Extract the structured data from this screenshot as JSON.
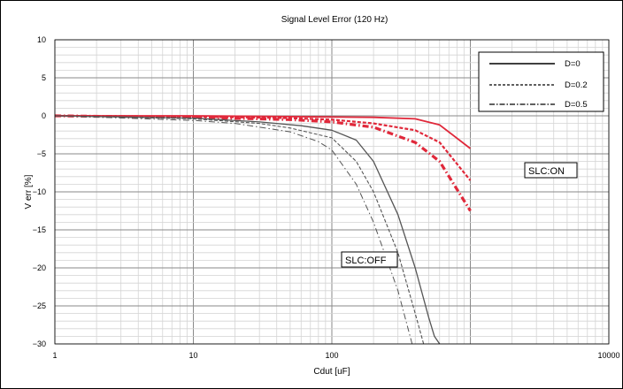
{
  "chart_data": {
    "type": "line",
    "title": "Signal Level Error (120 Hz)",
    "xlabel": "Cdut [uF]",
    "ylabel": "V err [%]",
    "xscale": "log",
    "xlim": [
      1,
      10000
    ],
    "ylim": [
      -30,
      10
    ],
    "xtick_labels": [
      "1",
      "10",
      "100",
      "10000"
    ],
    "ytick_labels": [
      "10",
      "5",
      "0",
      "−5",
      "−10",
      "−15",
      "−20",
      "−25",
      "−30"
    ],
    "yticks": [
      10,
      5,
      0,
      -5,
      -10,
      -15,
      -20,
      -25,
      -30
    ],
    "grid": true,
    "legend": {
      "placement": "top-right",
      "entries": [
        {
          "label": "D=0",
          "style": "solid"
        },
        {
          "label": "D=0.2",
          "style": "dashed"
        },
        {
          "label": "D=0.5",
          "style": "dashdot"
        }
      ]
    },
    "annotations": [
      {
        "id": "slc-on",
        "text": "SLC:ON"
      },
      {
        "id": "slc-off",
        "text": "SLC:OFF"
      }
    ],
    "series": [
      {
        "group": "SLC:ON",
        "style": "solid",
        "color": "#e0283a",
        "x": [
          1,
          10,
          50,
          100,
          200,
          400,
          600,
          1000
        ],
        "y": [
          0,
          0,
          -0.1,
          -0.15,
          -0.2,
          -0.4,
          -1.2,
          -4.3
        ]
      },
      {
        "group": "SLC:ON",
        "style": "dashed",
        "color": "#e0283a",
        "x": [
          1,
          10,
          50,
          100,
          200,
          400,
          600,
          1000
        ],
        "y": [
          0,
          -0.1,
          -0.3,
          -0.5,
          -1.0,
          -1.9,
          -3.5,
          -8.5
        ]
      },
      {
        "group": "SLC:ON",
        "style": "dashdot",
        "color": "#e0283a",
        "x": [
          1,
          10,
          50,
          100,
          200,
          400,
          600,
          1000
        ],
        "y": [
          0,
          -0.2,
          -0.5,
          -0.8,
          -1.5,
          -3.5,
          -6.0,
          -12.5
        ]
      },
      {
        "group": "SLC:OFF",
        "style": "solid",
        "color": "#555555",
        "x": [
          1,
          10,
          30,
          60,
          100,
          150,
          200,
          300,
          400,
          500,
          550,
          600
        ],
        "y": [
          0,
          -0.3,
          -0.8,
          -1.3,
          -1.9,
          -3.2,
          -6.0,
          -13.0,
          -20.0,
          -26.5,
          -29.0,
          -30.0
        ]
      },
      {
        "group": "SLC:OFF",
        "style": "dashed",
        "color": "#555555",
        "x": [
          1,
          10,
          30,
          50,
          100,
          150,
          200,
          300,
          400,
          460
        ],
        "y": [
          0,
          -0.4,
          -1.0,
          -1.6,
          -2.9,
          -6.0,
          -10.0,
          -18.0,
          -26.0,
          -30.0
        ]
      },
      {
        "group": "SLC:OFF",
        "style": "dashdot",
        "color": "#555555",
        "x": [
          1,
          10,
          20,
          50,
          80,
          100,
          150,
          200,
          300,
          380
        ],
        "y": [
          0,
          -0.6,
          -1.0,
          -2.1,
          -3.4,
          -4.5,
          -9.0,
          -14.0,
          -23.0,
          -30.0
        ]
      }
    ]
  }
}
